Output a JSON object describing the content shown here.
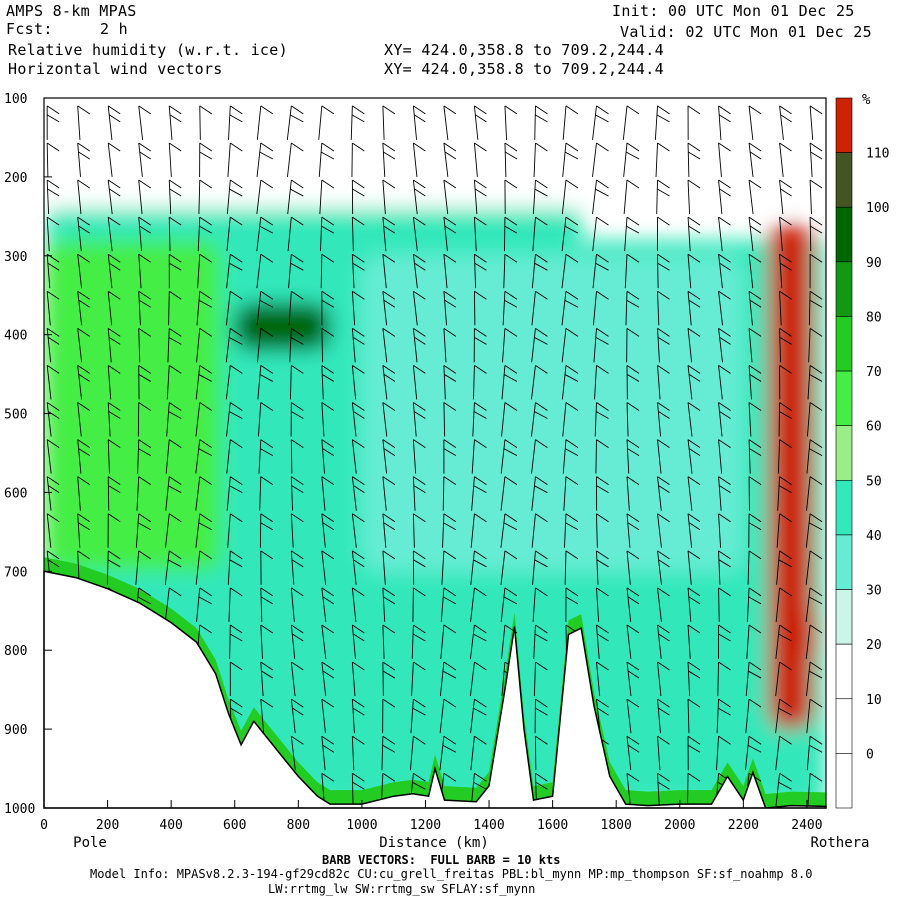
{
  "header": {
    "model": "AMPS 8-km MPAS",
    "fcst_label": "Fcst:",
    "fcst_value": "2 h",
    "field1": "Relative humidity (w.r.t. ice)",
    "field2": "Horizontal wind vectors",
    "xy1": "XY= 424.0,358.8 to 709.2,244.4",
    "xy2": "XY= 424.0,358.8 to 709.2,244.4",
    "init": "Init: 00 UTC Mon 01 Dec 25",
    "valid": "Valid: 02 UTC Mon 01 Dec 25"
  },
  "footer": {
    "barb_note": "BARB VECTORS:  FULL BARB = 10 kts",
    "model_info": "Model Info: MPASv8.2.3-194-gf29cd82c CU:cu_grell_freitas PBL:bl_mynn MP:mp_thompson SF:sf_noahmp 8.0",
    "radiation": "LW:rrtmg_lw SW:rrtmg_sw SFLAY:sf_mynn"
  },
  "chart_data": {
    "type": "heatmap",
    "title": "Relative humidity (w.r.t. ice)",
    "xlabel": "Distance (km)",
    "xlim": [
      0,
      2460
    ],
    "ylim": [
      1000,
      100
    ],
    "x_ticks": [
      0,
      200,
      400,
      600,
      800,
      1000,
      1200,
      1400,
      1600,
      1800,
      2000,
      2200,
      2400
    ],
    "y_ticks": [
      100,
      200,
      300,
      400,
      500,
      600,
      700,
      800,
      900,
      1000
    ],
    "x_end_labels": {
      "left": "Pole",
      "right": "Rothera"
    },
    "colorbar": {
      "unit": "%",
      "levels": [
        0,
        10,
        20,
        30,
        40,
        50,
        60,
        70,
        80,
        90,
        100,
        110
      ],
      "colors": [
        "#ffffff",
        "#ffffff",
        "#ffffff",
        "#ffffff",
        "#ccf5ea",
        "#66ecd4",
        "#33e8bb",
        "#99ee88",
        "#44ee44",
        "#22cc22",
        "#119911",
        "#006600",
        "#445522",
        "#cc2200"
      ]
    },
    "terrain": [
      [
        0,
        700
      ],
      [
        100,
        708
      ],
      [
        200,
        722
      ],
      [
        300,
        740
      ],
      [
        400,
        765
      ],
      [
        480,
        790
      ],
      [
        540,
        830
      ],
      [
        580,
        880
      ],
      [
        620,
        920
      ],
      [
        660,
        890
      ],
      [
        740,
        930
      ],
      [
        800,
        960
      ],
      [
        860,
        985
      ],
      [
        900,
        995
      ],
      [
        1000,
        995
      ],
      [
        1100,
        985
      ],
      [
        1160,
        982
      ],
      [
        1210,
        985
      ],
      [
        1230,
        950
      ],
      [
        1260,
        990
      ],
      [
        1360,
        992
      ],
      [
        1400,
        972
      ],
      [
        1450,
        850
      ],
      [
        1480,
        770
      ],
      [
        1510,
        900
      ],
      [
        1540,
        990
      ],
      [
        1600,
        985
      ],
      [
        1650,
        780
      ],
      [
        1690,
        772
      ],
      [
        1730,
        870
      ],
      [
        1780,
        960
      ],
      [
        1830,
        995
      ],
      [
        1900,
        997
      ],
      [
        2000,
        995
      ],
      [
        2100,
        995
      ],
      [
        2150,
        960
      ],
      [
        2200,
        990
      ],
      [
        2230,
        955
      ],
      [
        2270,
        1000
      ],
      [
        2350,
        997
      ],
      [
        2460,
        998
      ]
    ],
    "rh_structure": [
      {
        "x_range": [
          0,
          2460
        ],
        "p_range": [
          100,
          240
        ],
        "rh": 0
      },
      {
        "x_range": [
          0,
          1700
        ],
        "p_range": [
          240,
          280
        ],
        "rh": 45
      },
      {
        "x_range": [
          0,
          560
        ],
        "p_range": [
          280,
          700
        ],
        "rh": 65
      },
      {
        "x_range": [
          600,
          900
        ],
        "p_range": [
          360,
          420
        ],
        "rh": 95
      },
      {
        "x_range": [
          700,
          1400
        ],
        "p_range": [
          420,
          700
        ],
        "rh": 45
      },
      {
        "x_range": [
          1000,
          2200
        ],
        "p_range": [
          300,
          700
        ],
        "rh": 30
      },
      {
        "x_range": [
          2280,
          2420
        ],
        "p_range": [
          260,
          900
        ],
        "rh": 110
      },
      {
        "x_range": [
          2330,
          2430
        ],
        "p_range": [
          740,
          820
        ],
        "rh": 120
      }
    ]
  }
}
